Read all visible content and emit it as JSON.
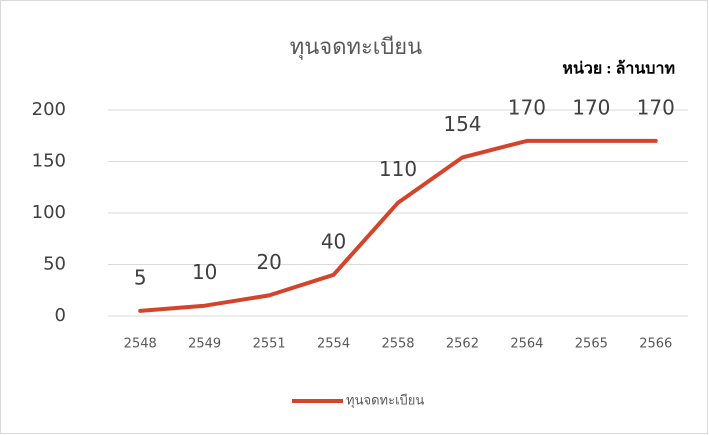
{
  "chart_data": {
    "type": "line",
    "title": "ทุนจดทะเบียน",
    "annotation": "หน่วย : ล้านบาท",
    "categories": [
      "2548",
      "2549",
      "2551",
      "2554",
      "2558",
      "2562",
      "2564",
      "2565",
      "2566"
    ],
    "series": [
      {
        "name": "ทุนจดทะเบียน",
        "color": "#d4442a",
        "values": [
          5,
          10,
          20,
          40,
          110,
          154,
          170,
          170,
          170
        ]
      }
    ],
    "ylim": [
      0,
      200
    ],
    "yticks": [
      0,
      50,
      100,
      150,
      200
    ],
    "grid": true,
    "legend": "bottom"
  }
}
